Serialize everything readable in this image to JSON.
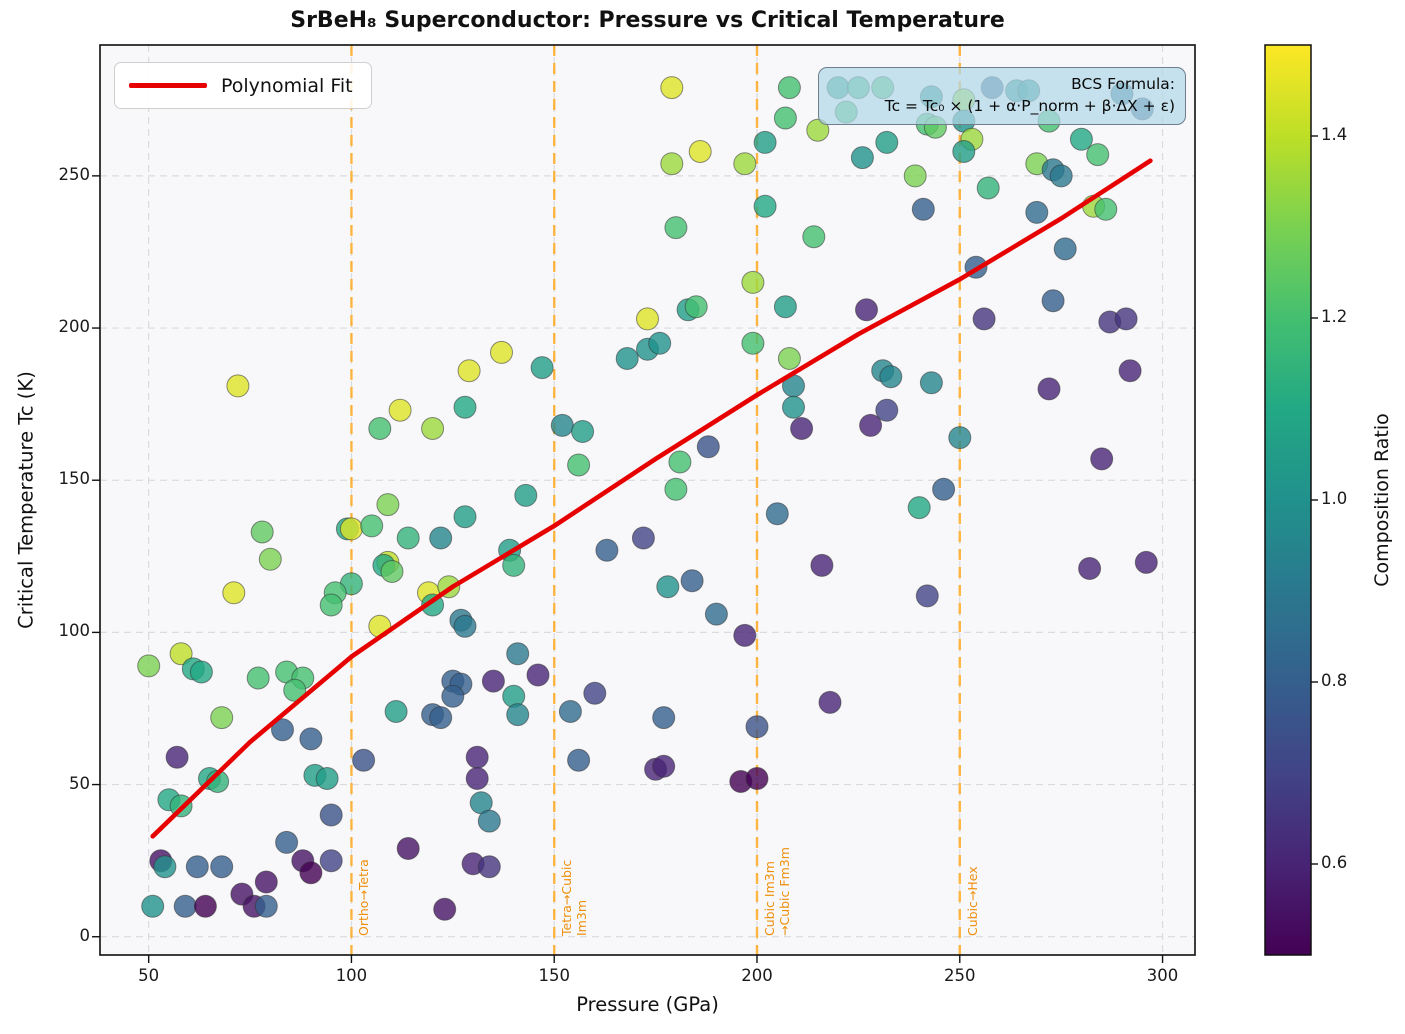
{
  "title": "SrBeH₈ Superconductor: Pressure vs Critical Temperature",
  "axes": {
    "xlabel": "Pressure (GPa)",
    "ylabel": "Critical Temperature Tc (K)"
  },
  "legend": {
    "label": "Polynomial Fit",
    "line_color": "#e60000"
  },
  "annotation": {
    "line1": "BCS Formula:",
    "line2": "Tc = Tc₀ × (1 + α·P_norm + β·ΔX + ε)"
  },
  "colorbar": {
    "label": "Composition Ratio",
    "ticks": [
      0.6,
      0.8,
      1.0,
      1.2,
      1.4
    ],
    "min": 0.5,
    "max": 1.5,
    "viridis_stops": [
      "#440154",
      "#482475",
      "#414487",
      "#355f8d",
      "#2a788e",
      "#21918c",
      "#22a884",
      "#44bf70",
      "#7ad151",
      "#bddf26",
      "#fde725"
    ]
  },
  "phase_lines": [
    {
      "x": 100,
      "label": "Ortho→Tetra"
    },
    {
      "x": 150,
      "label": "Tetra→Cubic\nIm3m"
    },
    {
      "x": 200,
      "label": "Cubic Im3m\n→Cubic Fm3m"
    },
    {
      "x": 250,
      "label": "Cubic→Hex"
    }
  ],
  "style": {
    "fit_color": "#e60000",
    "phase_line_color": "rgba(255,166,20,0.8)",
    "phase_label_color": "#ee8f0c",
    "grid_color": "#d9dbde",
    "plot_bg": "#f8f8fa",
    "spine_color": "#1c1c1c",
    "marker_edge": "#333333"
  },
  "chart_data": {
    "type": "scatter",
    "title": "SrBeH₈ Superconductor: Pressure vs Critical Temperature",
    "xlabel": "Pressure (GPa)",
    "ylabel": "Critical Temperature Tc (K)",
    "xlim": [
      38,
      308
    ],
    "ylim": [
      -6,
      293
    ],
    "xticks": [
      50,
      100,
      150,
      200,
      250,
      300
    ],
    "yticks": [
      0,
      50,
      100,
      150,
      200,
      250
    ],
    "grid": true,
    "legend_position": "upper left",
    "color_by": "Composition Ratio",
    "color_range": [
      0.5,
      1.5
    ],
    "points": [
      [
        72,
        181,
        1.45
      ],
      [
        112,
        173,
        1.45
      ],
      [
        107,
        167,
        1.2
      ],
      [
        120,
        167,
        1.35
      ],
      [
        129,
        186,
        1.45
      ],
      [
        128,
        174,
        1.1
      ],
      [
        137,
        192,
        1.45
      ],
      [
        147,
        187,
        1.05
      ],
      [
        152,
        168,
        0.95
      ],
      [
        157,
        166,
        1.05
      ],
      [
        156,
        155,
        1.2
      ],
      [
        143,
        145,
        1.05
      ],
      [
        179,
        279,
        1.45
      ],
      [
        208,
        279,
        1.2
      ],
      [
        207,
        269,
        1.2
      ],
      [
        215,
        265,
        1.35
      ],
      [
        202,
        261,
        1.05
      ],
      [
        186,
        258,
        1.45
      ],
      [
        179,
        254,
        1.35
      ],
      [
        197,
        254,
        1.35
      ],
      [
        202,
        240,
        1.1
      ],
      [
        180,
        233,
        1.2
      ],
      [
        214,
        230,
        1.2
      ],
      [
        199,
        215,
        1.35
      ],
      [
        183,
        206,
        1.05
      ],
      [
        185,
        207,
        1.2
      ],
      [
        207,
        207,
        1.05
      ],
      [
        173,
        203,
        1.45
      ],
      [
        199,
        195,
        1.2
      ],
      [
        173,
        193,
        1.0
      ],
      [
        176,
        195,
        1.0
      ],
      [
        168,
        190,
        1.0
      ],
      [
        188,
        161,
        0.75
      ],
      [
        181,
        156,
        1.2
      ],
      [
        180,
        147,
        1.2
      ],
      [
        208,
        190,
        1.3
      ],
      [
        209,
        181,
        0.95
      ],
      [
        209,
        174,
        1.0
      ],
      [
        211,
        167,
        0.6
      ],
      [
        216,
        122,
        0.6
      ],
      [
        205,
        139,
        0.85
      ],
      [
        218,
        77,
        0.6
      ],
      [
        220,
        279,
        1.05
      ],
      [
        225,
        279,
        1.15
      ],
      [
        231,
        279,
        1.2
      ],
      [
        243,
        276,
        1.0
      ],
      [
        251,
        275,
        1.35
      ],
      [
        258,
        279,
        0.8
      ],
      [
        264,
        278,
        1.0
      ],
      [
        267,
        278,
        1.0
      ],
      [
        290,
        277,
        0.85
      ],
      [
        295,
        272,
        0.8
      ],
      [
        222,
        271,
        1.2
      ],
      [
        251,
        268,
        1.0
      ],
      [
        242,
        267,
        1.2
      ],
      [
        244,
        266,
        1.25
      ],
      [
        272,
        268,
        1.2
      ],
      [
        253,
        262,
        1.35
      ],
      [
        251,
        258,
        1.05
      ],
      [
        232,
        261,
        1.05
      ],
      [
        226,
        256,
        1.0
      ],
      [
        280,
        262,
        1.1
      ],
      [
        284,
        257,
        1.2
      ],
      [
        269,
        254,
        1.3
      ],
      [
        273,
        252,
        0.9
      ],
      [
        275,
        250,
        0.9
      ],
      [
        239,
        250,
        1.3
      ],
      [
        257,
        246,
        1.15
      ],
      [
        283,
        240,
        1.35
      ],
      [
        286,
        239,
        1.2
      ],
      [
        269,
        238,
        0.85
      ],
      [
        241,
        239,
        0.8
      ],
      [
        276,
        226,
        0.85
      ],
      [
        254,
        220,
        0.8
      ],
      [
        227,
        206,
        0.6
      ],
      [
        273,
        209,
        0.8
      ],
      [
        287,
        202,
        0.65
      ],
      [
        291,
        203,
        0.65
      ],
      [
        256,
        203,
        0.65
      ],
      [
        292,
        186,
        0.6
      ],
      [
        231,
        186,
        0.95
      ],
      [
        233,
        184,
        0.95
      ],
      [
        243,
        182,
        0.95
      ],
      [
        272,
        180,
        0.6
      ],
      [
        232,
        173,
        0.7
      ],
      [
        228,
        168,
        0.6
      ],
      [
        250,
        164,
        0.95
      ],
      [
        285,
        157,
        0.6
      ],
      [
        246,
        147,
        0.8
      ],
      [
        240,
        141,
        1.1
      ],
      [
        242,
        112,
        0.7
      ],
      [
        282,
        121,
        0.6
      ],
      [
        296,
        123,
        0.6
      ],
      [
        109,
        142,
        1.3
      ],
      [
        99,
        134,
        1.1
      ],
      [
        100,
        134,
        1.45
      ],
      [
        105,
        135,
        1.2
      ],
      [
        114,
        131,
        1.15
      ],
      [
        122,
        131,
        0.95
      ],
      [
        78,
        133,
        1.25
      ],
      [
        80,
        124,
        1.3
      ],
      [
        71,
        113,
        1.45
      ],
      [
        109,
        123,
        1.4
      ],
      [
        108,
        122,
        1.1
      ],
      [
        110,
        120,
        1.25
      ],
      [
        100,
        116,
        1.15
      ],
      [
        96,
        113,
        1.2
      ],
      [
        95,
        109,
        1.2
      ],
      [
        119,
        113,
        1.45
      ],
      [
        124,
        115,
        1.35
      ],
      [
        120,
        109,
        1.1
      ],
      [
        107,
        102,
        1.45
      ],
      [
        50,
        89,
        1.3
      ],
      [
        58,
        93,
        1.4
      ],
      [
        61,
        88,
        1.1
      ],
      [
        63,
        87,
        1.1
      ],
      [
        77,
        85,
        1.2
      ],
      [
        84,
        87,
        1.2
      ],
      [
        88,
        85,
        1.2
      ],
      [
        86,
        81,
        1.2
      ],
      [
        68,
        72,
        1.3
      ],
      [
        83,
        68,
        0.8
      ],
      [
        90,
        65,
        0.8
      ],
      [
        57,
        59,
        0.6
      ],
      [
        65,
        52,
        1.1
      ],
      [
        67,
        51,
        1.15
      ],
      [
        55,
        45,
        1.1
      ],
      [
        58,
        43,
        1.15
      ],
      [
        84,
        31,
        0.8
      ],
      [
        95,
        40,
        0.75
      ],
      [
        103,
        58,
        0.75
      ],
      [
        114,
        29,
        0.55
      ],
      [
        53,
        25,
        0.55
      ],
      [
        54,
        23,
        1.0
      ],
      [
        62,
        23,
        0.8
      ],
      [
        68,
        23,
        0.8
      ],
      [
        88,
        25,
        0.55
      ],
      [
        90,
        21,
        0.5
      ],
      [
        95,
        25,
        0.7
      ],
      [
        79,
        18,
        0.55
      ],
      [
        73,
        14,
        0.55
      ],
      [
        76,
        10,
        0.55
      ],
      [
        79,
        10,
        0.8
      ],
      [
        51,
        10,
        1.0
      ],
      [
        59,
        10,
        0.8
      ],
      [
        64,
        10,
        0.5
      ],
      [
        123,
        9,
        0.55
      ],
      [
        127,
        104,
        0.9
      ],
      [
        128,
        102,
        0.9
      ],
      [
        125,
        84,
        0.8
      ],
      [
        127,
        83,
        0.8
      ],
      [
        125,
        79,
        0.8
      ],
      [
        111,
        74,
        1.05
      ],
      [
        120,
        73,
        0.8
      ],
      [
        122,
        72,
        0.8
      ],
      [
        91,
        53,
        1.05
      ],
      [
        94,
        52,
        1.05
      ],
      [
        128,
        138,
        1.05
      ],
      [
        139,
        127,
        1.05
      ],
      [
        140,
        122,
        1.15
      ],
      [
        163,
        127,
        0.8
      ],
      [
        172,
        131,
        0.7
      ],
      [
        178,
        115,
        1.0
      ],
      [
        184,
        117,
        0.8
      ],
      [
        190,
        106,
        0.85
      ],
      [
        197,
        99,
        0.6
      ],
      [
        141,
        93,
        0.9
      ],
      [
        146,
        86,
        0.6
      ],
      [
        135,
        84,
        0.6
      ],
      [
        140,
        79,
        1.05
      ],
      [
        141,
        73,
        0.95
      ],
      [
        160,
        80,
        0.7
      ],
      [
        154,
        74,
        0.85
      ],
      [
        177,
        72,
        0.8
      ],
      [
        156,
        58,
        0.8
      ],
      [
        175,
        55,
        0.6
      ],
      [
        177,
        56,
        0.6
      ],
      [
        131,
        59,
        0.6
      ],
      [
        131,
        52,
        0.6
      ],
      [
        132,
        44,
        0.95
      ],
      [
        134,
        38,
        0.9
      ],
      [
        130,
        24,
        0.6
      ],
      [
        134,
        23,
        0.65
      ],
      [
        196,
        51,
        0.5
      ],
      [
        200,
        52,
        0.5
      ],
      [
        200,
        69,
        0.75
      ]
    ],
    "fit_line": {
      "label": "Polynomial Fit",
      "x": [
        51,
        75,
        100,
        125,
        150,
        175,
        200,
        225,
        250,
        275,
        297
      ],
      "y": [
        33,
        64,
        92,
        115,
        135,
        157,
        178,
        198,
        216,
        236,
        255
      ]
    }
  }
}
